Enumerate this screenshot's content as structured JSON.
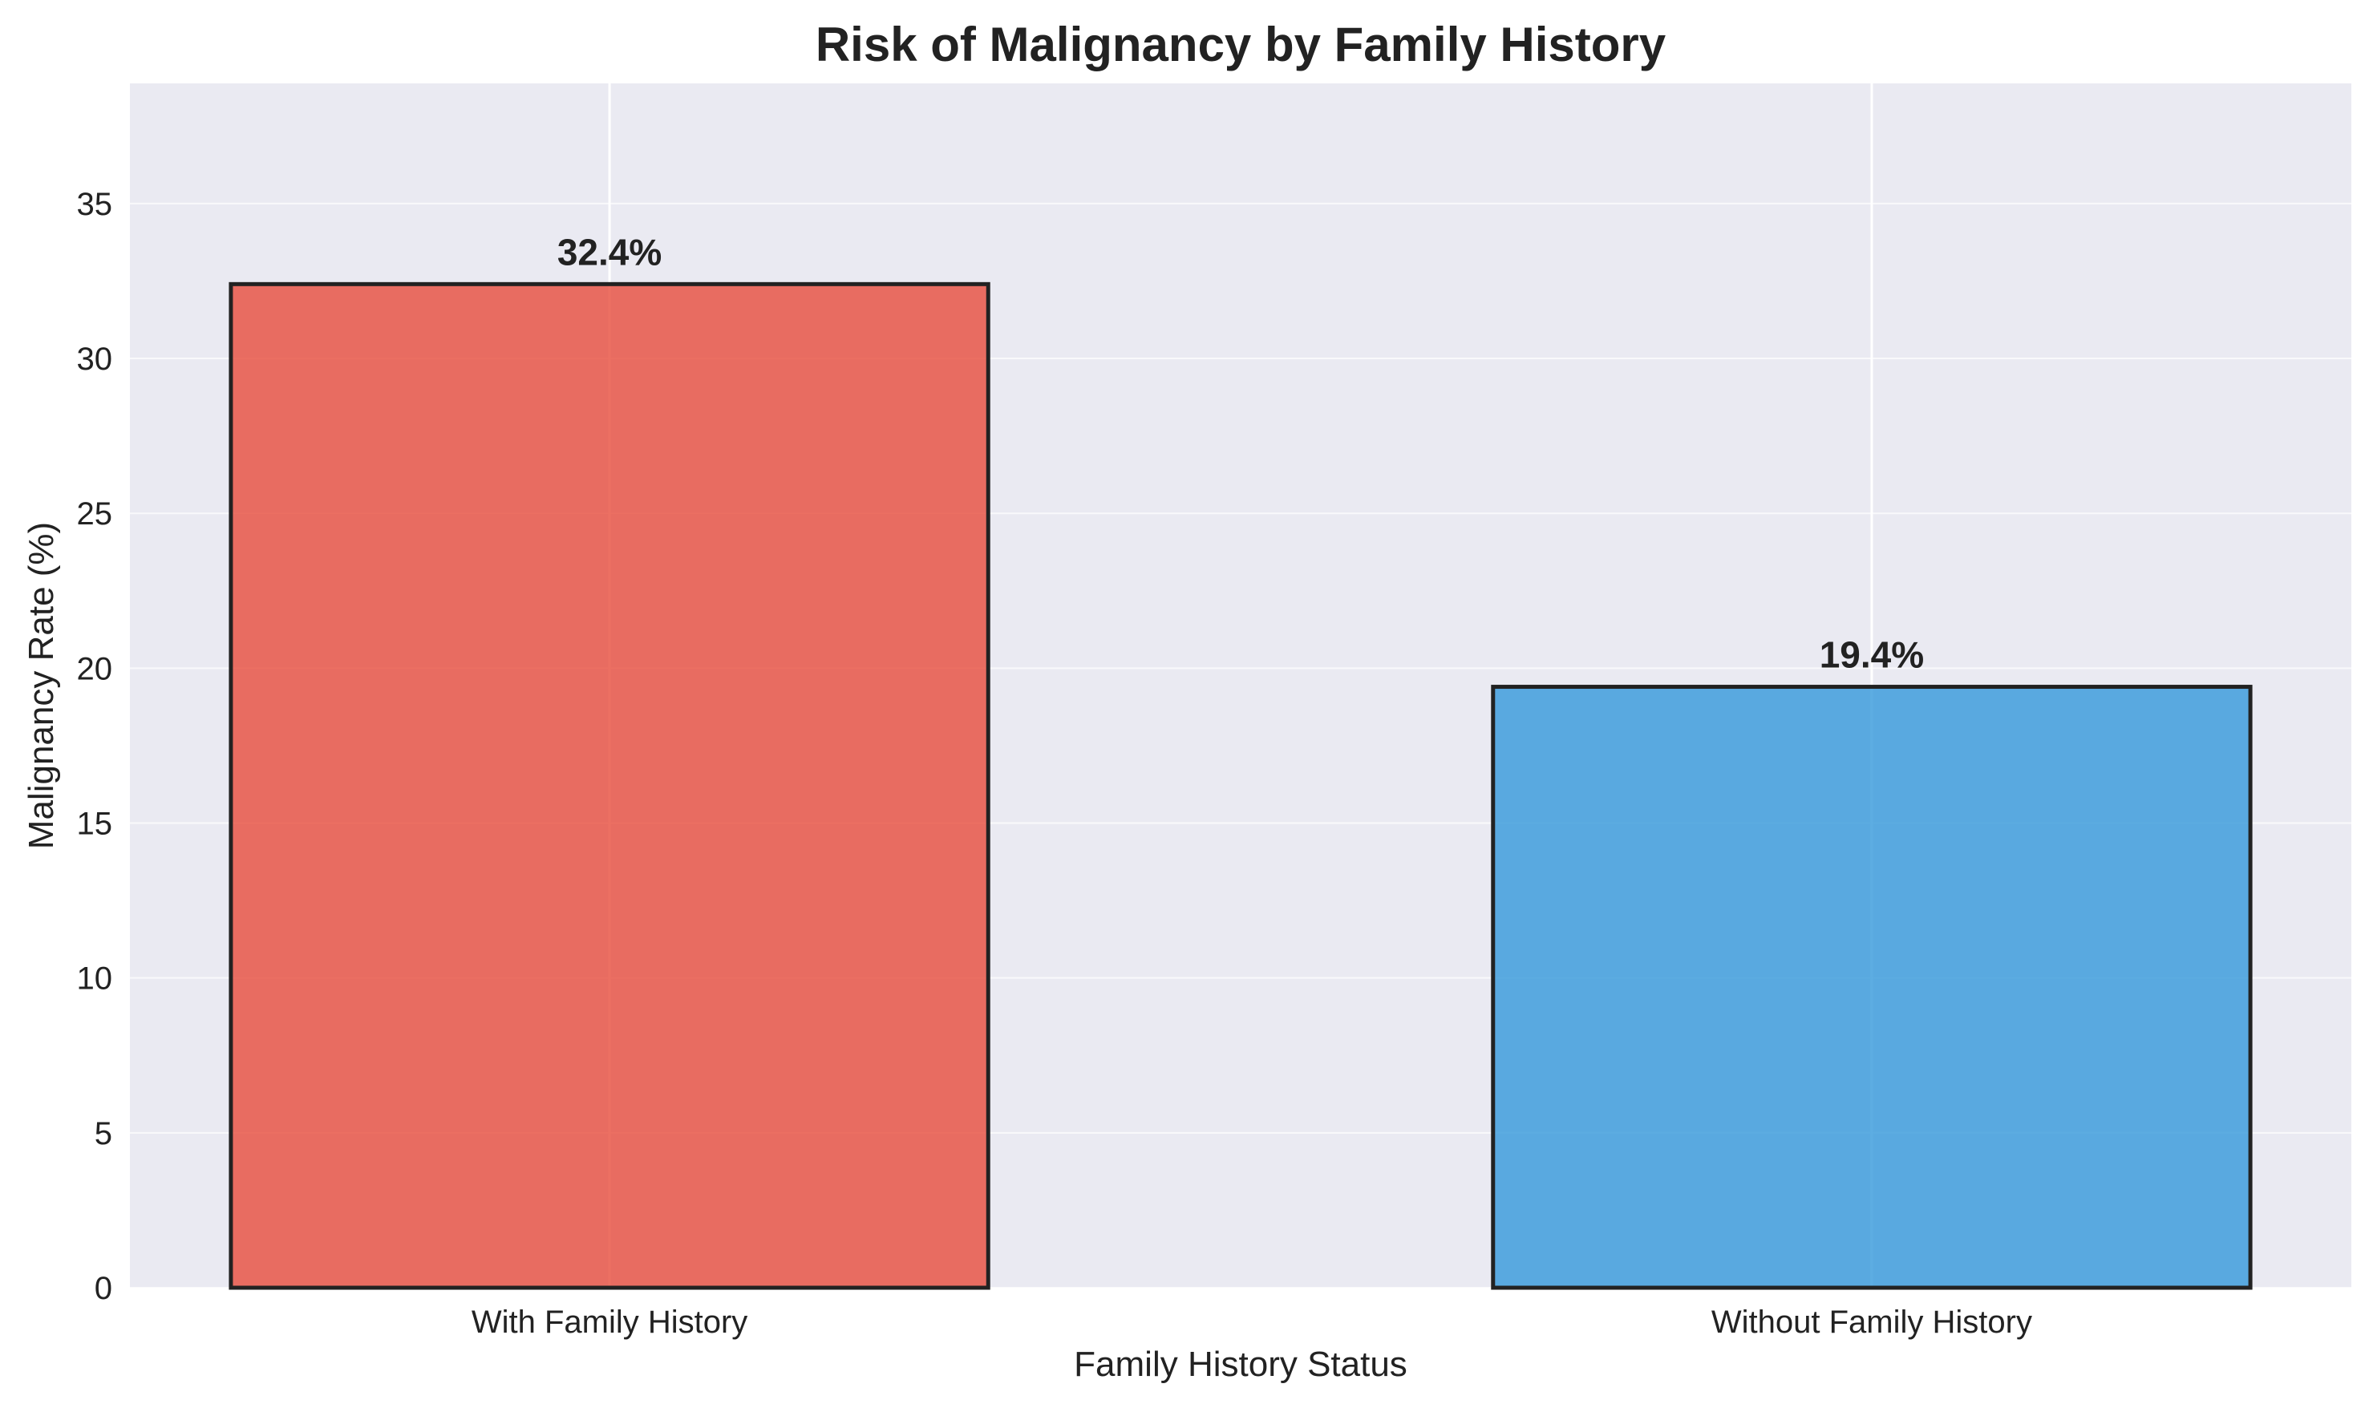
{
  "chart_data": {
    "type": "bar",
    "title": "Risk of Malignancy by Family History",
    "xlabel": "Family History Status",
    "ylabel": "Malignancy Rate (%)",
    "categories": [
      "With Family History",
      "Without Family History"
    ],
    "values": [
      32.4,
      19.4
    ],
    "value_labels": [
      "32.4%",
      "19.4%"
    ],
    "bar_colors": [
      "#e74c3c",
      "#3498db"
    ],
    "bar_edge_color": "#222222",
    "ylim": [
      0,
      38.88
    ],
    "yticks": [
      0,
      5,
      10,
      15,
      20,
      25,
      30,
      35
    ],
    "ytick_labels": [
      "0",
      "5",
      "10",
      "15",
      "20",
      "25",
      "30",
      "35"
    ],
    "grid": true,
    "legend": "none",
    "background_color": "#eaeaf2",
    "grid_color": "#ffffff",
    "text_color": "#222222"
  }
}
